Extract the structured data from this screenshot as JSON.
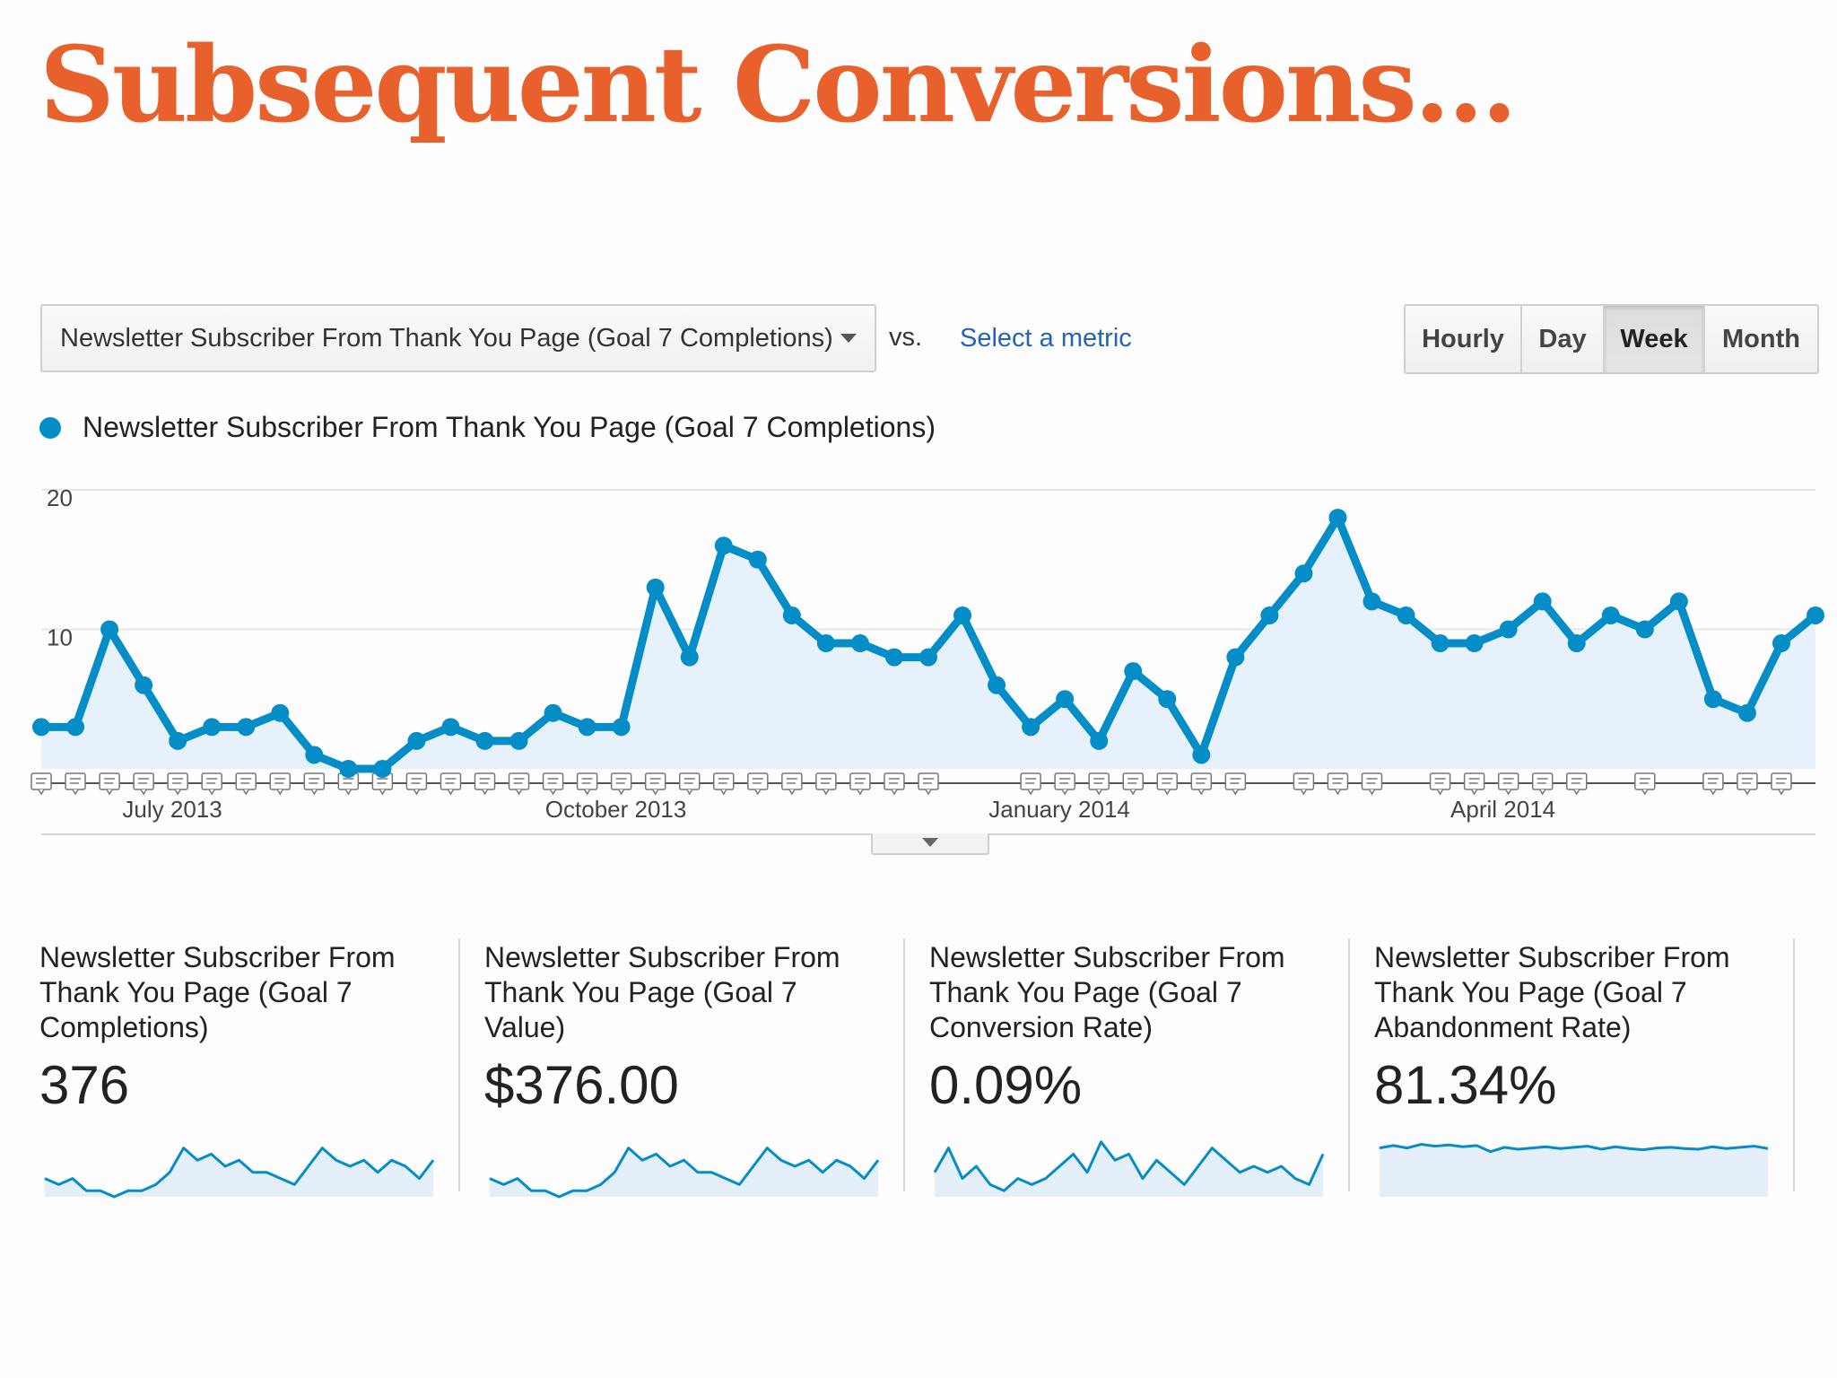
{
  "slide": {
    "title": "Subsequent Conversions..."
  },
  "toolbar": {
    "metric_select": "Newsletter Subscriber From Thank You Page (Goal 7 Completions)",
    "vs_label": "vs.",
    "select_metric_link": "Select a metric",
    "periods": [
      {
        "label": "Hourly",
        "active": false
      },
      {
        "label": "Day",
        "active": false
      },
      {
        "label": "Week",
        "active": true
      },
      {
        "label": "Month",
        "active": false
      }
    ]
  },
  "legend": {
    "label": "Newsletter Subscriber From Thank You Page (Goal 7 Completions)",
    "color": "#058dc7"
  },
  "chart_data": {
    "type": "area",
    "y_ticks": [
      "20",
      "10"
    ],
    "ylim": [
      0,
      20
    ],
    "x_tick_labels": [
      "July 2013",
      "October 2013",
      "January 2014",
      "April 2014"
    ],
    "grid": true,
    "series": [
      {
        "name": "Newsletter Subscriber From Thank You Page (Goal 7 Completions)",
        "color": "#058dc7",
        "values": [
          3,
          3,
          10,
          6,
          2,
          3,
          3,
          4,
          1,
          0,
          0,
          2,
          3,
          2,
          2,
          4,
          3,
          3,
          13,
          8,
          16,
          15,
          11,
          9,
          9,
          8,
          8,
          11,
          6,
          3,
          5,
          2,
          7,
          5,
          1,
          8,
          11,
          14,
          18,
          12,
          11,
          9,
          9,
          10,
          12,
          9,
          11,
          10,
          12,
          5,
          4,
          9,
          11
        ]
      }
    ]
  },
  "scorecards": [
    {
      "label": "Newsletter Subscriber From Thank You Page (Goal 7 Completions)",
      "value": "376"
    },
    {
      "label": "Newsletter Subscriber From Thank You Page (Goal 7 Value)",
      "value": "$376.00"
    },
    {
      "label": "Newsletter Subscriber From Thank You Page (Goal 7 Conversion Rate)",
      "value": "0.09%"
    },
    {
      "label": "Newsletter Subscriber From Thank You Page (Goal 7 Abandonment Rate)",
      "value": "81.34%"
    }
  ]
}
